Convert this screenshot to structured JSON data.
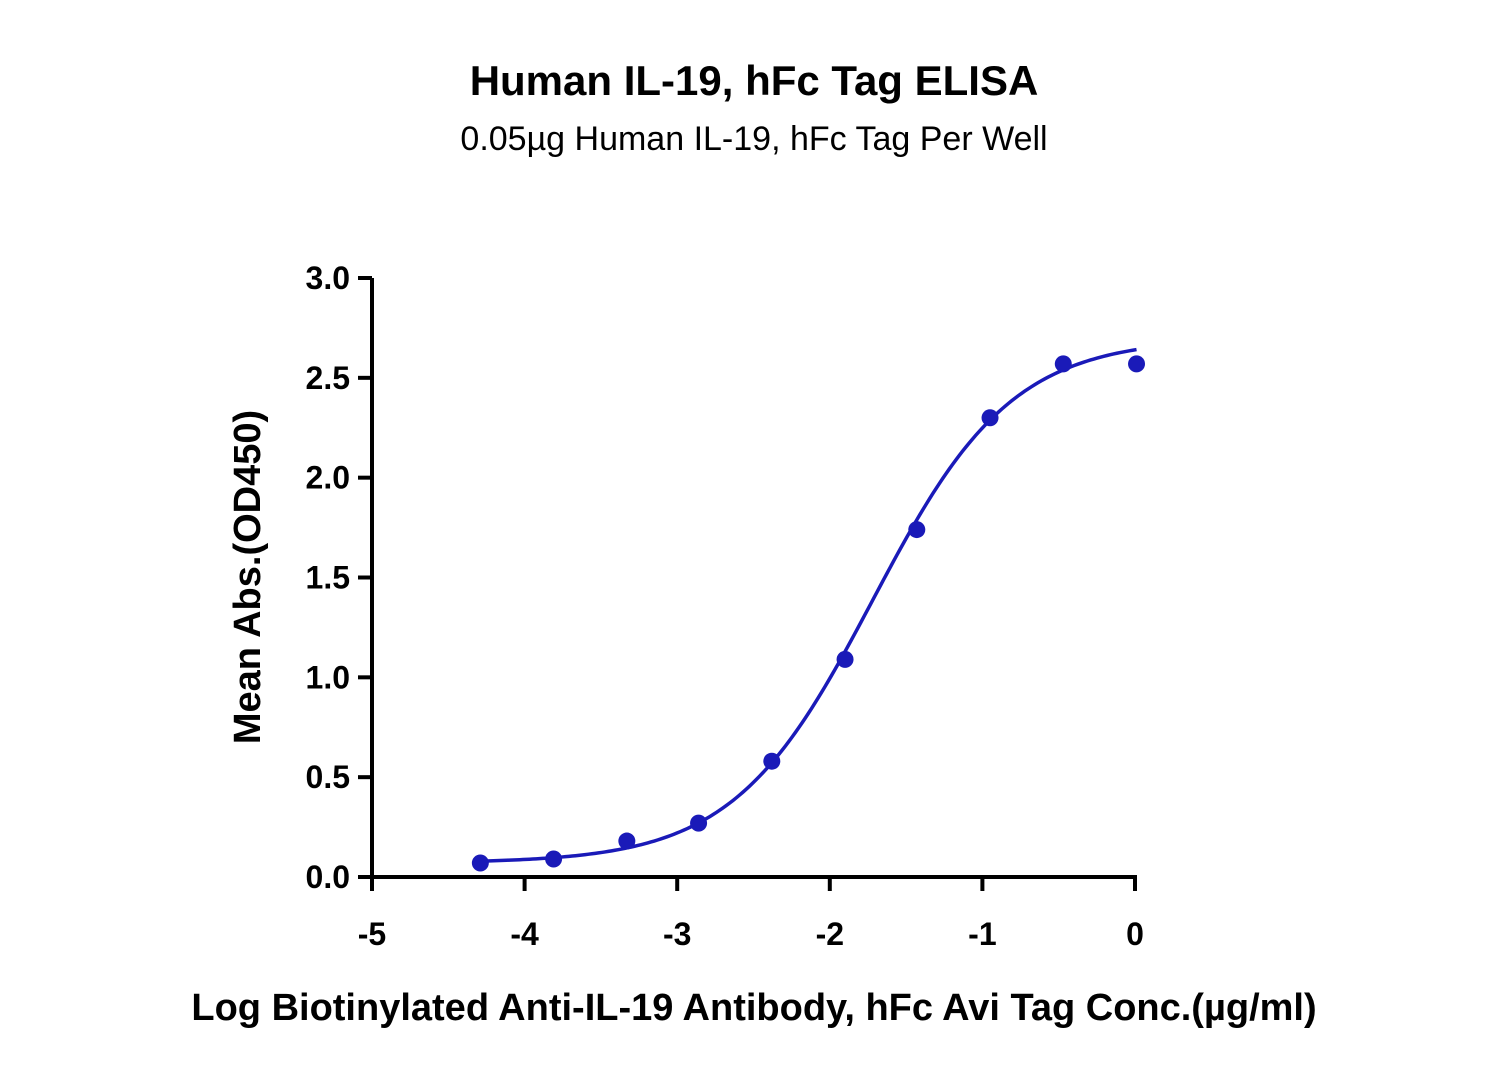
{
  "chart_data": {
    "type": "scatter",
    "title": "Human IL-19, hFc Tag ELISA",
    "subtitle": "0.05µg Human IL-19, hFc Tag Per Well",
    "xlabel": "Log Biotinylated Anti-IL-19 Antibody, hFc Avi Tag Conc.(µg/ml)",
    "ylabel": "Mean Abs.(OD450)",
    "xlim": [
      -5,
      0
    ],
    "ylim": [
      0,
      3.0
    ],
    "x_ticks": [
      "-5",
      "-4",
      "-3",
      "-2",
      "-1",
      "0"
    ],
    "y_ticks": [
      "0.0",
      "0.5",
      "1.0",
      "1.5",
      "2.0",
      "2.5",
      "3.0"
    ],
    "grid": false,
    "series": [
      {
        "color": "#1a1ab8",
        "points": [
          {
            "x": -4.29,
            "y": 0.07
          },
          {
            "x": -3.81,
            "y": 0.09
          },
          {
            "x": -3.33,
            "y": 0.18
          },
          {
            "x": -2.86,
            "y": 0.27
          },
          {
            "x": -2.38,
            "y": 0.58
          },
          {
            "x": -1.9,
            "y": 1.09
          },
          {
            "x": -1.43,
            "y": 1.74
          },
          {
            "x": -0.95,
            "y": 2.3
          },
          {
            "x": -0.47,
            "y": 2.57
          },
          {
            "x": 0.01,
            "y": 2.57
          }
        ],
        "fit": {
          "type": "4PL",
          "bottom": 0.07,
          "top": 2.7,
          "logEC50": -1.72,
          "hill": 0.95
        }
      }
    ]
  }
}
